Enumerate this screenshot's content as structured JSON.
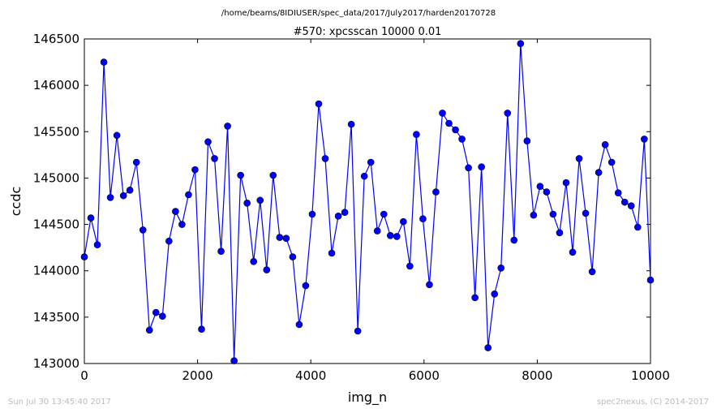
{
  "suptitle": "/home/beams/8IDIUSER/spec_data/2017/July2017/harden20170728",
  "footer": {
    "timestamp": "Sun Jul 30 13:45:40 2017",
    "credit": "spec2nexus, (C) 2014-2017"
  },
  "colors": {
    "series": "#0000ff"
  },
  "chart_data": {
    "type": "line",
    "markers": "circle",
    "title": "#570: xpcsscan 10000 0.01",
    "xlabel": "img_n",
    "ylabel": "ccdc",
    "xlim": [
      0,
      10000
    ],
    "ylim": [
      143000,
      146500
    ],
    "xticks": [
      "0",
      "2000",
      "4000",
      "6000",
      "8000",
      "10000"
    ],
    "yticks": [
      "143000",
      "143500",
      "144000",
      "144500",
      "145000",
      "145500",
      "146000",
      "146500"
    ],
    "grid": false,
    "series": [
      {
        "x": [
          0,
          115,
          230,
          345,
          460,
          575,
          690,
          805,
          920,
          1035,
          1150,
          1265,
          1380,
          1495,
          1610,
          1725,
          1840,
          1955,
          2070,
          2185,
          2300,
          2415,
          2530,
          2645,
          2760,
          2875,
          2990,
          3105,
          3220,
          3335,
          3450,
          3565,
          3680,
          3795,
          3910,
          4025,
          4140,
          4255,
          4370,
          4485,
          4600,
          4715,
          4830,
          4945,
          5060,
          5175,
          5290,
          5405,
          5520,
          5635,
          5750,
          5865,
          5980,
          6095,
          6210,
          6325,
          6440,
          6555,
          6670,
          6785,
          6900,
          7015,
          7130,
          7245,
          7360,
          7475,
          7590,
          7705,
          7820,
          7935,
          8050,
          8165,
          8280,
          8395,
          8510,
          8625,
          8740,
          8855,
          8970,
          9085,
          9200,
          9315,
          9430,
          9545,
          9660,
          9775,
          9890,
          10000
        ],
        "y": [
          144150,
          144570,
          144280,
          146250,
          144790,
          145460,
          144810,
          144870,
          145170,
          144440,
          143360,
          143550,
          143510,
          144320,
          144640,
          144500,
          144820,
          145090,
          143370,
          145390,
          145210,
          144210,
          145560,
          143030,
          145030,
          144730,
          144100,
          144760,
          144010,
          145030,
          144360,
          144350,
          144150,
          143420,
          143840,
          144610,
          145800,
          145210,
          144190,
          144590,
          144630,
          145580,
          143350,
          145020,
          145170,
          144430,
          144610,
          144380,
          144370,
          144530,
          144050,
          145470,
          144560,
          143850,
          144850,
          145700,
          145590,
          145520,
          145420,
          145110,
          143710,
          145120,
          143170,
          143750,
          144030,
          145700,
          144330,
          146450,
          145400,
          144600,
          144910,
          144850,
          144610,
          144410,
          144950,
          144200,
          145210,
          144620,
          143990,
          145060,
          145360,
          145170,
          144840,
          144740,
          144700,
          144470,
          145420,
          143900
        ]
      }
    ]
  }
}
